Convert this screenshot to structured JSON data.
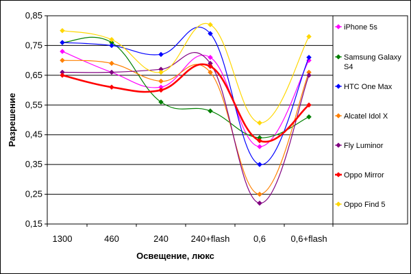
{
  "chart_data": {
    "type": "line",
    "categories": [
      "1300",
      "460",
      "240",
      "240+flash",
      "0,6",
      "0,6+flash"
    ],
    "xlabel": "Освещение, люкс",
    "ylabel": "Разрешение",
    "ylim": [
      0.15,
      0.85
    ],
    "yticks": [
      "0,15",
      "0,25",
      "0,35",
      "0,45",
      "0,55",
      "0,65",
      "0,75",
      "0,85"
    ],
    "grid": "horizontal",
    "legend_position": "right",
    "series": [
      {
        "name": "iPhone 5s",
        "color": "#ff00ff",
        "values": [
          0.73,
          0.66,
          0.61,
          0.71,
          0.41,
          0.7
        ]
      },
      {
        "name": "Samsung Galaxy S4",
        "color": "#008000",
        "values": [
          0.76,
          0.76,
          0.56,
          0.53,
          0.44,
          0.51
        ]
      },
      {
        "name": "HTC One Max",
        "color": "#0000ff",
        "values": [
          0.76,
          0.75,
          0.72,
          0.79,
          0.35,
          0.71
        ]
      },
      {
        "name": "Alcatel Idol X",
        "color": "#ff8000",
        "values": [
          0.7,
          0.69,
          0.63,
          0.66,
          0.25,
          0.66
        ]
      },
      {
        "name": "Fly Luminor",
        "color": "#800080",
        "values": [
          0.66,
          0.66,
          0.67,
          0.69,
          0.22,
          0.65
        ]
      },
      {
        "name": "Oppo Mirror",
        "color": "#ff0000",
        "values": [
          0.65,
          0.61,
          0.6,
          0.68,
          0.43,
          0.55
        ]
      },
      {
        "name": "Oppo Find 5",
        "color": "#ffd700",
        "values": [
          0.8,
          0.77,
          0.66,
          0.82,
          0.49,
          0.78
        ]
      }
    ]
  }
}
